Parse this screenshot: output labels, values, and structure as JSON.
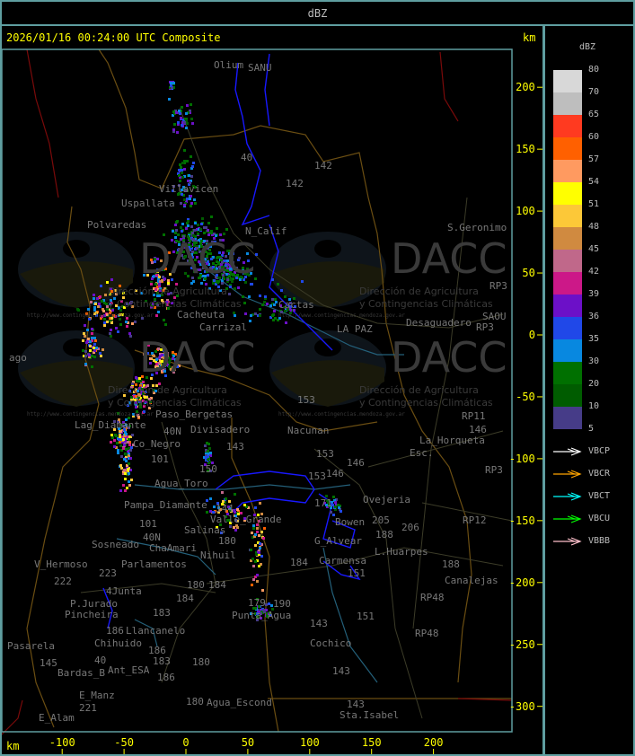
{
  "header": {
    "title": "dBZ"
  },
  "map": {
    "timestamp": "2026/01/16 00:24:00 UTC Composite",
    "unit_top": "km",
    "unit_bottom": "km",
    "x_ticks": [
      "-100",
      "-50",
      "0",
      "50",
      "100",
      "150",
      "200"
    ],
    "y_ticks": [
      "200",
      "150",
      "100",
      "50",
      "0",
      "-50",
      "-100",
      "-150",
      "-200",
      "-250",
      "-300"
    ],
    "places": [
      "Olium",
      "SANU",
      "Uspallata",
      "Polvaredas",
      "Villavicen",
      "N_Calif",
      "Cacheuta",
      "Carrizal",
      "Cactas",
      "LA PAZ",
      "Desaguadero",
      "S.Geronimo",
      "SAOU",
      "RP3",
      "RP3",
      "RP11",
      "146",
      "153",
      "Nacunan",
      "La_Horqueta",
      "Esc.",
      "142",
      "142",
      "40",
      "Paso_Bergetas",
      "Lag_Diamante",
      "Co_Negro",
      "Divisadero",
      "40N",
      "101",
      "143",
      "150",
      "Agua_Toro",
      "Pampa_Diamante",
      "101",
      "40N",
      "Salinas",
      "180",
      "ChaAmari",
      "Parlamentos",
      "Sosneado",
      "Nihuil",
      "V_Hermoso",
      "222",
      "223",
      "4Junta",
      "180",
      "184",
      "184",
      "183",
      "P.Jurado",
      "Pincheira",
      "Llancanelo",
      "Chihuido",
      "186",
      "186",
      "40",
      "Ant_ESA",
      "183",
      "145",
      "Bardas_B",
      "180",
      "186",
      "E_Manz",
      "221",
      "E_Alam",
      "Pasarela",
      "180",
      "Agua_Escond",
      "Punta_Agua",
      "179",
      "190",
      "143",
      "151",
      "151",
      "Cochico",
      "143",
      "143",
      "Sta.Isabel",
      "RP48",
      "RP48",
      "188",
      "Canalejas",
      "Carmensa",
      "L.Huarpes",
      "188",
      "205",
      "206",
      "Ovejeria",
      "RP12",
      "RP3",
      "184",
      "Valle_Grande",
      "144",
      "153",
      "146",
      "153",
      "146",
      "171",
      "G_Alvear",
      "Bowen",
      "ago"
    ],
    "watermark": {
      "logo_text": "DACC",
      "line1": "Dirección de Agricultura",
      "line2": "y Contingencias Climáticas",
      "url": "http://www.contingencias.mendoza.gov.ar"
    }
  },
  "legend": {
    "title": "dBZ",
    "labels": [
      "80",
      "70",
      "65",
      "60",
      "57",
      "54",
      "51",
      "48",
      "45",
      "42",
      "39",
      "36",
      "35",
      "30",
      "20",
      "10",
      "5"
    ],
    "colors": [
      "#d8d8d8",
      "#bebebe",
      "#ff3a20",
      "#ff6000",
      "#ff9a60",
      "#ffff00",
      "#fcc838",
      "#d08a40",
      "#c0688a",
      "#cc1888",
      "#6c10c8",
      "#2048e8",
      "#0888e0",
      "#007000",
      "#005c00",
      "#463c88"
    ],
    "radars": [
      {
        "name": "VBCP",
        "color": "#ffffff"
      },
      {
        "name": "VBCR",
        "color": "#ffa500"
      },
      {
        "name": "VBCT",
        "color": "#00ffff"
      },
      {
        "name": "VBCU",
        "color": "#00ff00"
      },
      {
        "name": "VBBB",
        "color": "#ffc0cb"
      }
    ]
  }
}
